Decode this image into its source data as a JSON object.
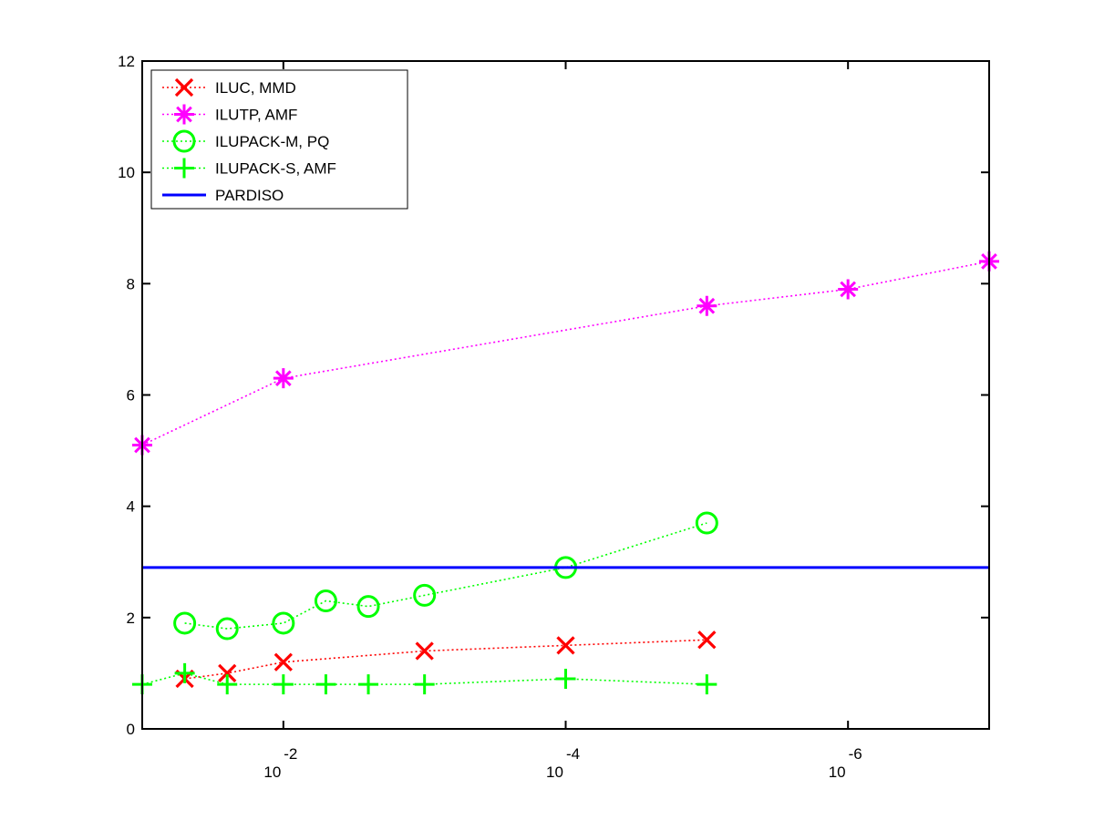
{
  "chart_data": {
    "type": "line",
    "title": "",
    "xlabel": "",
    "ylabel": "",
    "x_scale": "log",
    "x_direction": "decreasing",
    "xlim": [
      0.1,
      1e-07
    ],
    "ylim": [
      0,
      12
    ],
    "yticks": [
      {
        "value": 0,
        "label": "0"
      },
      {
        "value": 2,
        "label": "2"
      },
      {
        "value": 4,
        "label": "4"
      },
      {
        "value": 6,
        "label": "6"
      },
      {
        "value": 8,
        "label": "8"
      },
      {
        "value": 10,
        "label": "10"
      },
      {
        "value": 12,
        "label": "12"
      }
    ],
    "xticks": [
      {
        "value": 0.01,
        "base": "10",
        "exponent": "-2"
      },
      {
        "value": 0.0001,
        "base": "10",
        "exponent": "-4"
      },
      {
        "value": 1e-06,
        "base": "10",
        "exponent": "-6"
      }
    ],
    "grid": false,
    "legend_position": "top-left",
    "series": [
      {
        "name": "ILUC, MMD",
        "color": "#ff0000",
        "marker": "x",
        "line_style": "dotted",
        "x": [
          0.05,
          0.025,
          0.01,
          0.001,
          0.0001,
          1e-05
        ],
        "y": [
          0.9,
          1.0,
          1.2,
          1.4,
          1.5,
          1.6
        ]
      },
      {
        "name": "ILUTP, AMF",
        "color": "#ff00ff",
        "marker": "asterisk",
        "line_style": "dotted",
        "x": [
          0.1,
          0.01,
          1e-05,
          1e-06,
          1e-07
        ],
        "y": [
          5.1,
          6.3,
          7.6,
          7.9,
          8.4
        ]
      },
      {
        "name": "ILUPACK-M, PQ",
        "color": "#00ff00",
        "marker": "circle",
        "line_style": "dotted",
        "x": [
          0.05,
          0.025,
          0.01,
          0.005,
          0.0025,
          0.001,
          0.0001,
          1e-05
        ],
        "y": [
          1.9,
          1.8,
          1.9,
          2.3,
          2.2,
          2.4,
          2.9,
          3.7
        ]
      },
      {
        "name": "ILUPACK-S, AMF",
        "color": "#00ff00",
        "marker": "plus",
        "line_style": "dotted",
        "x": [
          0.1,
          0.05,
          0.025,
          0.01,
          0.005,
          0.0025,
          0.001,
          0.0001,
          1e-05
        ],
        "y": [
          0.8,
          1.0,
          0.8,
          0.8,
          0.8,
          0.8,
          0.8,
          0.9,
          0.8
        ]
      },
      {
        "name": "PARDISO",
        "color": "#0000ff",
        "marker": "none",
        "line_style": "solid",
        "x": [
          0.1,
          1e-07
        ],
        "y": [
          2.9,
          2.9
        ]
      }
    ]
  }
}
